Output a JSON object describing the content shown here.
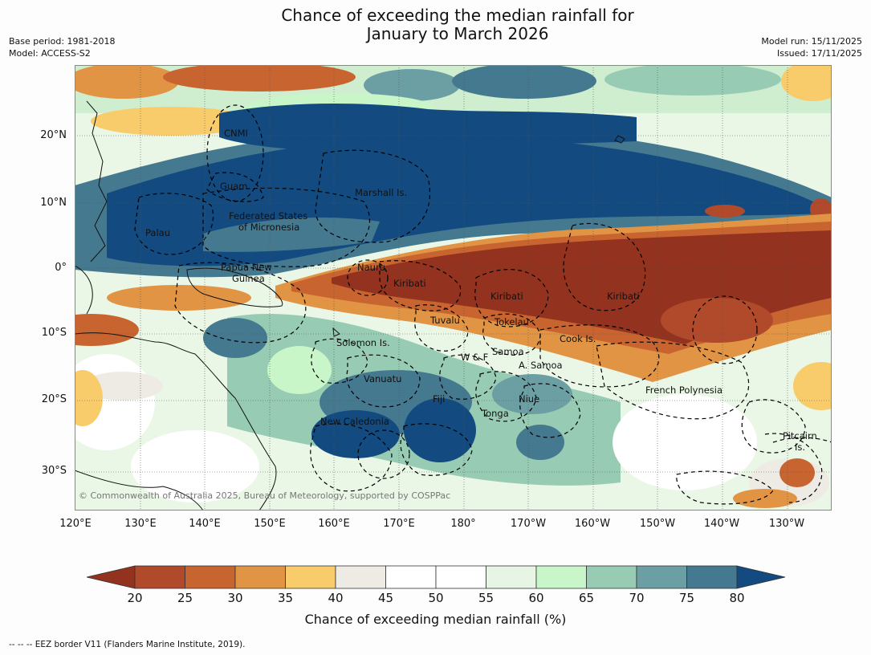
{
  "title": {
    "line1": "Chance of exceeding the median rainfall for",
    "line2": "January to March 2026"
  },
  "meta": {
    "base_period": "Base period: 1981-2018",
    "model": "Model: ACCESS-S2",
    "model_run": "Model run: 15/11/2025",
    "issued": "Issued: 17/11/2025"
  },
  "axes": {
    "lat_labels": [
      "20°N",
      "10°N",
      "0°",
      "10°S",
      "20°S",
      "30°S"
    ],
    "lon_labels": [
      "120°E",
      "130°E",
      "140°E",
      "150°E",
      "160°E",
      "170°E",
      "180°",
      "170°W",
      "160°W",
      "150°W",
      "140°W",
      "130°W"
    ]
  },
  "regions": {
    "cnmi": "CNMI",
    "guam": "Guam",
    "marshall": "Marshall Is.",
    "fsm1": "Federated States",
    "fsm2": "of Micronesia",
    "palau": "Palau",
    "png1": "Papua New",
    "png2": "Guinea",
    "nauru": "Nauru",
    "kiribati_w": "Kiribati",
    "kiribati_c": "Kiribati",
    "kiribati_e": "Kiribati",
    "tuvalu": "Tuvalu",
    "tokelau": "Tokelau",
    "cook": "Cook Is.",
    "solomon": "Solomon Is.",
    "wallis": "W & F",
    "samoa": "Samoa",
    "am_samoa": "A. Samoa",
    "vanuatu": "Vanuatu",
    "fiji": "Fiji",
    "niue": "Niue",
    "tonga": "Tonga",
    "new_caledonia": "New Caledonia",
    "french_polynesia": "French Polynesia",
    "pitcairn1": "Pitcairn",
    "pitcairn2": "Is."
  },
  "copyright": "© Commonwealth of Australia 2025, Bureau of Meteorology, supported by COSPPac",
  "colorbar": {
    "ticks": [
      "20",
      "25",
      "30",
      "35",
      "40",
      "45",
      "50",
      "55",
      "60",
      "65",
      "70",
      "75",
      "80"
    ],
    "label": "Chance of exceeding median rainfall (%)",
    "colors": [
      "#93321f",
      "#b04a2a",
      "#c8642f",
      "#e09444",
      "#f8cc6a",
      "#eeebe4",
      "#ffffff",
      "#ffffff",
      "#e7f5e4",
      "#c8f6c8",
      "#97cbb3",
      "#6b9fa3",
      "#45798f",
      "#134b80"
    ]
  },
  "eez_note": "--  --  -- EEZ border V11 (Flanders Marine Institute, 2019)."
}
